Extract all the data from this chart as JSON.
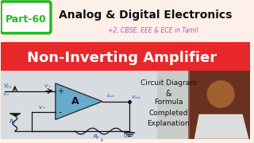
{
  "bg_color": "#fdf0e8",
  "red_bar_color": "#e8272a",
  "part_box_color": "#ffffff",
  "part_box_border": "#22bb22",
  "part_text": "Part-60",
  "part_text_color": "#22bb22",
  "title_text": "Analog & Digital Electronics",
  "title_color": "#111111",
  "subtitle_text": "+2, CBSE, EEE & ECE in Tamil",
  "subtitle_color": "#cc44cc",
  "banner_text": "Non-Inverting Amplifier",
  "banner_text_color": "#ffffff",
  "right_text_lines": [
    "Circuit Diagram",
    "&",
    "Formula",
    "Completed",
    "Explanation"
  ],
  "right_text_color": "#111111",
  "opamp_fill": "#66aacc",
  "opamp_text": "A",
  "wire_color": "#111111",
  "label_color": "#2244aa",
  "circuit_bg": "#dce8f0",
  "bottom_bg": "#d8d0c8",
  "person_bg": "#8b6050"
}
